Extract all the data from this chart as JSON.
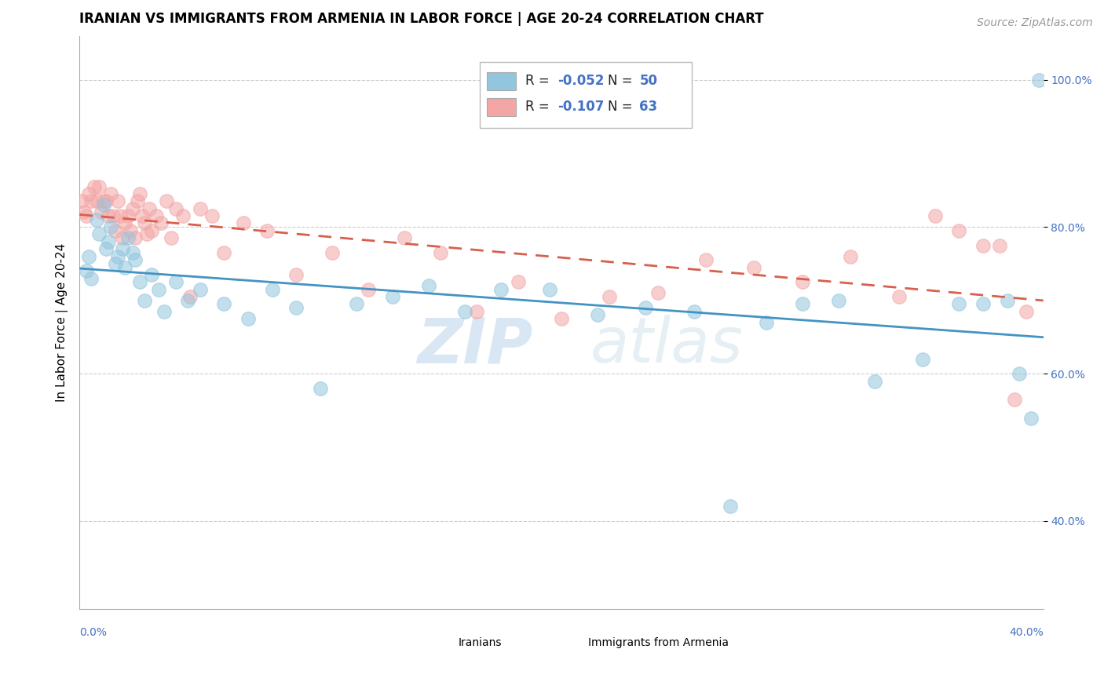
{
  "title": "IRANIAN VS IMMIGRANTS FROM ARMENIA IN LABOR FORCE | AGE 20-24 CORRELATION CHART",
  "source": "Source: ZipAtlas.com",
  "ylabel": "In Labor Force | Age 20-24",
  "xlim": [
    0.0,
    0.4
  ],
  "ylim": [
    0.28,
    1.06
  ],
  "yticks": [
    0.4,
    0.6,
    0.8,
    1.0
  ],
  "ytick_labels": [
    "40.0%",
    "60.0%",
    "80.0%",
    "100.0%"
  ],
  "legend_blue_R": "R = ",
  "legend_blue_Rval": "-0.052",
  "legend_blue_N": "N = ",
  "legend_blue_Nval": "50",
  "legend_pink_R": "R = ",
  "legend_pink_Rval": "-0.107",
  "legend_pink_N": "N = ",
  "legend_pink_Nval": "63",
  "legend_label_blue": "Iranians",
  "legend_label_pink": "Immigrants from Armenia",
  "blue_color": "#92c5de",
  "pink_color": "#f4a5a5",
  "trend_blue": "#4393c3",
  "trend_pink": "#d6604d",
  "watermark_zip": "ZIP",
  "watermark_atlas": "atlas",
  "iranians_x": [
    0.003,
    0.004,
    0.005,
    0.007,
    0.008,
    0.01,
    0.011,
    0.012,
    0.013,
    0.015,
    0.016,
    0.018,
    0.019,
    0.02,
    0.022,
    0.023,
    0.025,
    0.027,
    0.03,
    0.033,
    0.035,
    0.04,
    0.045,
    0.05,
    0.06,
    0.07,
    0.08,
    0.09,
    0.1,
    0.115,
    0.13,
    0.145,
    0.16,
    0.175,
    0.195,
    0.215,
    0.235,
    0.255,
    0.27,
    0.285,
    0.3,
    0.315,
    0.33,
    0.35,
    0.365,
    0.375,
    0.385,
    0.39,
    0.395,
    0.398
  ],
  "iranians_y": [
    0.74,
    0.76,
    0.73,
    0.81,
    0.79,
    0.83,
    0.77,
    0.78,
    0.8,
    0.75,
    0.76,
    0.77,
    0.745,
    0.785,
    0.765,
    0.755,
    0.725,
    0.7,
    0.735,
    0.715,
    0.685,
    0.725,
    0.7,
    0.715,
    0.695,
    0.675,
    0.715,
    0.69,
    0.58,
    0.695,
    0.705,
    0.72,
    0.685,
    0.715,
    0.715,
    0.68,
    0.69,
    0.685,
    0.42,
    0.67,
    0.695,
    0.7,
    0.59,
    0.62,
    0.695,
    0.695,
    0.7,
    0.6,
    0.54,
    1.0
  ],
  "armenia_x": [
    0.001,
    0.002,
    0.003,
    0.004,
    0.005,
    0.006,
    0.007,
    0.008,
    0.009,
    0.01,
    0.011,
    0.012,
    0.013,
    0.014,
    0.015,
    0.016,
    0.017,
    0.018,
    0.019,
    0.02,
    0.021,
    0.022,
    0.023,
    0.024,
    0.025,
    0.026,
    0.027,
    0.028,
    0.029,
    0.03,
    0.032,
    0.034,
    0.036,
    0.038,
    0.04,
    0.043,
    0.046,
    0.05,
    0.055,
    0.06,
    0.068,
    0.078,
    0.09,
    0.105,
    0.12,
    0.135,
    0.15,
    0.165,
    0.182,
    0.2,
    0.22,
    0.24,
    0.26,
    0.28,
    0.3,
    0.32,
    0.34,
    0.355,
    0.365,
    0.375,
    0.382,
    0.388,
    0.393
  ],
  "armenia_y": [
    0.835,
    0.82,
    0.815,
    0.845,
    0.835,
    0.855,
    0.835,
    0.855,
    0.82,
    0.835,
    0.835,
    0.815,
    0.845,
    0.815,
    0.795,
    0.835,
    0.815,
    0.785,
    0.805,
    0.815,
    0.795,
    0.825,
    0.785,
    0.835,
    0.845,
    0.815,
    0.805,
    0.79,
    0.825,
    0.795,
    0.815,
    0.805,
    0.835,
    0.785,
    0.825,
    0.815,
    0.705,
    0.825,
    0.815,
    0.765,
    0.805,
    0.795,
    0.735,
    0.765,
    0.715,
    0.785,
    0.765,
    0.685,
    0.725,
    0.675,
    0.705,
    0.71,
    0.755,
    0.745,
    0.725,
    0.76,
    0.705,
    0.815,
    0.795,
    0.775,
    0.775,
    0.565,
    0.685
  ],
  "title_fontsize": 12,
  "source_fontsize": 10,
  "axis_label_fontsize": 11,
  "tick_fontsize": 10,
  "legend_fontsize": 12
}
